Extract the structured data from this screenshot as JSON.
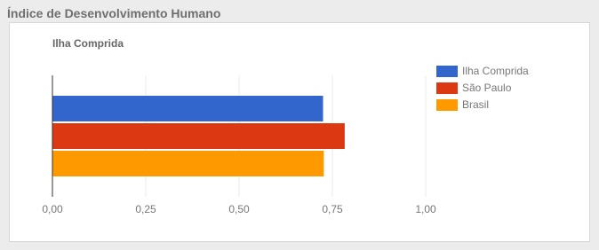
{
  "header": {
    "title": "Índice de Desenvolvimento Humano"
  },
  "chart_data": {
    "type": "hbar",
    "title": "Ilha Comprida",
    "categories": [
      null
    ],
    "series": [
      {
        "name": "Ilha Comprida",
        "color": "#3366cc",
        "values": [
          0.725
        ]
      },
      {
        "name": "São Paulo",
        "color": "#dc3912",
        "values": [
          0.783
        ]
      },
      {
        "name": "Brasil",
        "color": "#ff9900",
        "values": [
          0.727
        ]
      }
    ],
    "xlim": [
      0,
      1
    ],
    "xticks": [
      {
        "value": 0,
        "label": "0,00"
      },
      {
        "value": 0.25,
        "label": "0,25"
      },
      {
        "value": 0.5,
        "label": "0,50"
      },
      {
        "value": 0.75,
        "label": "0,75"
      },
      {
        "value": 1,
        "label": "1,00"
      }
    ],
    "grid": true,
    "legend": "right"
  }
}
